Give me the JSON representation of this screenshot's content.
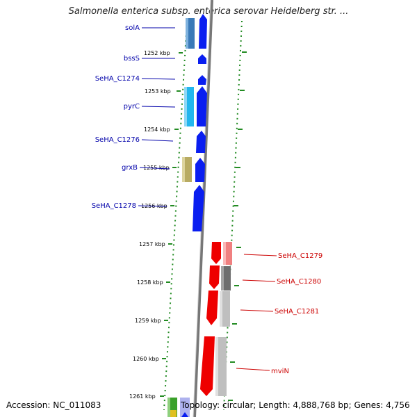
{
  "title": "Salmonella enterica subsp. enterica serovar Heidelberg str. ...",
  "footer": {
    "accession": "Accession: NC_011083",
    "topology": "Topology: circular; Length: 4,888,768 bp; Genes: 4,756"
  },
  "colors": {
    "left_labels": "#0000aa",
    "right_labels": "#cc0000",
    "backbone": "#888888",
    "ticks": "#228b22",
    "blue_gene": "#0a1ef0",
    "red_gene": "#ee0000"
  },
  "ticks_left": [
    "1252 kbp",
    "1253 kbp",
    "1254 kbp",
    "1255 kbp",
    "1256 kbp",
    "1257 kbp",
    "1258 kbp",
    "1259 kbp",
    "1260 kbp",
    "1261 kbp"
  ],
  "genes_left": [
    "solA",
    "bssS",
    "SeHA_C1274",
    "pyrC",
    "SeHA_C1276",
    "grxB",
    "SeHA_C1278"
  ],
  "genes_right": [
    "SeHA_C1279",
    "SeHA_C1280",
    "SeHA_C1281",
    "mviN"
  ]
}
